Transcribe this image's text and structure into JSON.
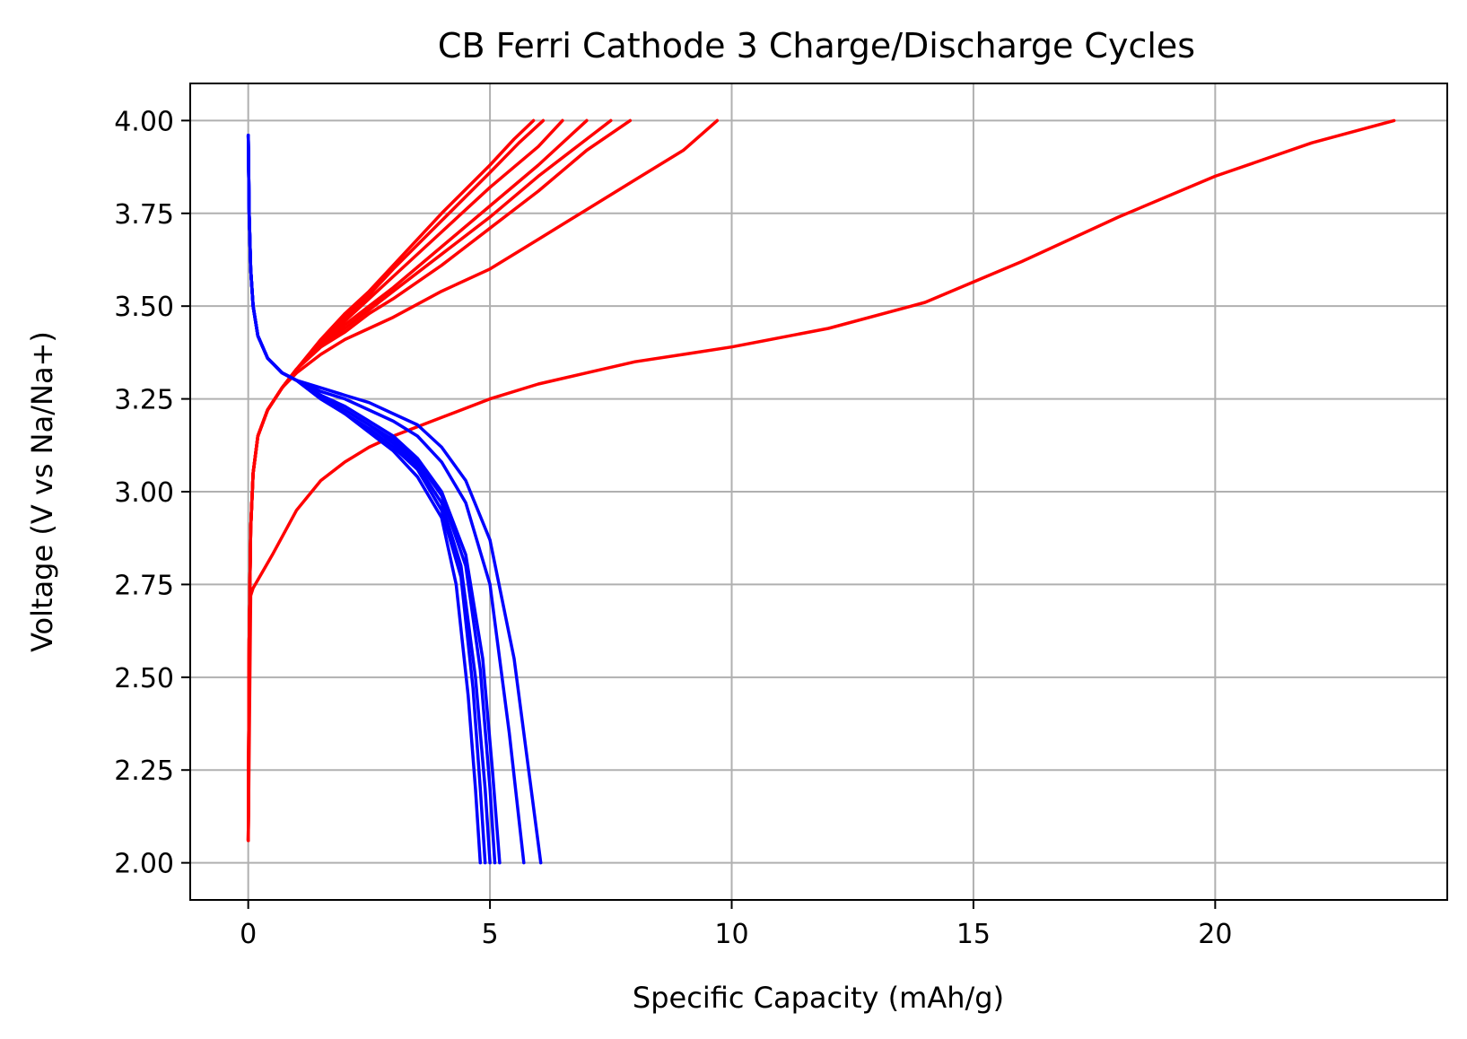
{
  "chart_data": {
    "type": "line",
    "title": "CB Ferri Cathode 3 Charge/Discharge Cycles",
    "xlabel": "Specific Capacity (mAh/g)",
    "ylabel": "Voltage (V vs Na/Na+)",
    "xlim": [
      -1.2,
      24.8
    ],
    "ylim": [
      1.9,
      4.1
    ],
    "x_ticks": [
      0,
      5,
      10,
      15,
      20
    ],
    "x_tick_labels": [
      "0",
      "5",
      "10",
      "15",
      "20"
    ],
    "y_ticks": [
      2.0,
      2.25,
      2.5,
      2.75,
      3.0,
      3.25,
      3.5,
      3.75,
      4.0
    ],
    "y_tick_labels": [
      "2.00",
      "2.25",
      "2.50",
      "2.75",
      "3.00",
      "3.25",
      "3.50",
      "3.75",
      "4.00"
    ],
    "grid": true,
    "colors": {
      "charge": "#ff0000",
      "discharge": "#0000ff"
    },
    "series": [
      {
        "kind": "charge",
        "color": "#ff0000",
        "x": [
          0,
          0.05,
          0.1,
          0.5,
          1,
          1.5,
          2,
          2.5,
          3,
          4,
          5,
          6,
          7,
          8,
          9,
          10,
          12,
          14,
          16,
          18,
          20,
          22,
          23.7
        ],
        "y": [
          2.06,
          2.72,
          2.74,
          2.83,
          2.95,
          3.03,
          3.08,
          3.12,
          3.15,
          3.2,
          3.25,
          3.29,
          3.32,
          3.35,
          3.37,
          3.39,
          3.44,
          3.51,
          3.62,
          3.74,
          3.85,
          3.94,
          4.0
        ]
      },
      {
        "kind": "charge",
        "color": "#ff0000",
        "x": [
          0,
          0.02,
          0.05,
          0.1,
          0.2,
          0.4,
          0.7,
          1,
          1.5,
          2,
          3,
          4,
          5,
          6,
          7,
          8,
          9,
          9.7
        ],
        "y": [
          2.06,
          2.6,
          2.9,
          3.05,
          3.15,
          3.22,
          3.28,
          3.32,
          3.37,
          3.41,
          3.47,
          3.54,
          3.6,
          3.68,
          3.76,
          3.84,
          3.92,
          4.0
        ]
      },
      {
        "kind": "charge",
        "color": "#ff0000",
        "x": [
          0,
          0.02,
          0.05,
          0.1,
          0.2,
          0.4,
          0.7,
          1,
          1.5,
          2,
          2.5,
          3,
          4,
          5,
          6,
          7,
          7.9
        ],
        "y": [
          2.06,
          2.6,
          2.9,
          3.05,
          3.15,
          3.22,
          3.28,
          3.33,
          3.39,
          3.43,
          3.48,
          3.52,
          3.61,
          3.71,
          3.81,
          3.92,
          4.0
        ]
      },
      {
        "kind": "charge",
        "color": "#ff0000",
        "x": [
          0,
          0.02,
          0.05,
          0.1,
          0.2,
          0.4,
          0.7,
          1,
          1.5,
          2,
          2.5,
          3,
          4,
          5,
          6,
          7,
          7.5
        ],
        "y": [
          2.06,
          2.6,
          2.9,
          3.05,
          3.15,
          3.22,
          3.28,
          3.33,
          3.39,
          3.44,
          3.49,
          3.54,
          3.64,
          3.74,
          3.85,
          3.95,
          4.0
        ]
      },
      {
        "kind": "charge",
        "color": "#ff0000",
        "x": [
          0,
          0.02,
          0.05,
          0.1,
          0.2,
          0.4,
          0.7,
          1,
          1.5,
          2,
          2.5,
          3,
          4,
          5,
          6,
          7.0
        ],
        "y": [
          2.06,
          2.6,
          2.9,
          3.05,
          3.15,
          3.22,
          3.28,
          3.33,
          3.39,
          3.45,
          3.5,
          3.55,
          3.66,
          3.77,
          3.88,
          4.0
        ]
      },
      {
        "kind": "charge",
        "color": "#ff0000",
        "x": [
          0,
          0.02,
          0.05,
          0.1,
          0.2,
          0.4,
          0.7,
          1,
          1.5,
          2,
          2.5,
          3,
          4,
          5,
          6,
          6.5
        ],
        "y": [
          2.06,
          2.6,
          2.9,
          3.05,
          3.15,
          3.22,
          3.28,
          3.33,
          3.4,
          3.46,
          3.52,
          3.58,
          3.7,
          3.82,
          3.93,
          4.0
        ]
      },
      {
        "kind": "charge",
        "color": "#ff0000",
        "x": [
          0,
          0.02,
          0.05,
          0.1,
          0.2,
          0.4,
          0.7,
          1,
          1.5,
          2,
          2.5,
          3,
          4,
          5,
          5.6,
          6.1
        ],
        "y": [
          2.06,
          2.6,
          2.9,
          3.05,
          3.15,
          3.22,
          3.28,
          3.33,
          3.4,
          3.47,
          3.53,
          3.6,
          3.73,
          3.86,
          3.94,
          4.0
        ]
      },
      {
        "kind": "charge",
        "color": "#ff0000",
        "x": [
          0,
          0.02,
          0.05,
          0.1,
          0.2,
          0.4,
          0.7,
          1,
          1.5,
          2,
          2.5,
          3,
          4,
          5,
          5.5,
          5.9
        ],
        "y": [
          2.06,
          2.6,
          2.9,
          3.05,
          3.15,
          3.22,
          3.28,
          3.33,
          3.41,
          3.48,
          3.54,
          3.61,
          3.75,
          3.88,
          3.95,
          4.0
        ]
      },
      {
        "kind": "discharge",
        "color": "#0000ff",
        "x": [
          0,
          0.02,
          0.05,
          0.1,
          0.2,
          0.4,
          0.7,
          1,
          1.5,
          2,
          2.5,
          3,
          3.5,
          4,
          4.5,
          5,
          5.5,
          5.8,
          6.05
        ],
        "y": [
          3.96,
          3.75,
          3.6,
          3.5,
          3.42,
          3.36,
          3.32,
          3.3,
          3.28,
          3.26,
          3.24,
          3.21,
          3.18,
          3.12,
          3.03,
          2.87,
          2.55,
          2.25,
          2.0
        ]
      },
      {
        "kind": "discharge",
        "color": "#0000ff",
        "x": [
          0,
          0.02,
          0.05,
          0.1,
          0.2,
          0.4,
          0.7,
          1,
          1.5,
          2,
          2.5,
          3,
          3.5,
          4,
          4.5,
          5,
          5.4,
          5.7
        ],
        "y": [
          3.96,
          3.75,
          3.6,
          3.5,
          3.42,
          3.36,
          3.32,
          3.3,
          3.27,
          3.25,
          3.22,
          3.19,
          3.15,
          3.08,
          2.97,
          2.75,
          2.35,
          2.0
        ]
      },
      {
        "kind": "discharge",
        "color": "#0000ff",
        "x": [
          0,
          0.02,
          0.05,
          0.1,
          0.2,
          0.4,
          0.7,
          1,
          1.5,
          2,
          2.5,
          3,
          3.5,
          4,
          4.5,
          4.85,
          5.05,
          5.2
        ],
        "y": [
          3.96,
          3.75,
          3.6,
          3.5,
          3.42,
          3.36,
          3.32,
          3.3,
          3.26,
          3.23,
          3.19,
          3.15,
          3.09,
          3.0,
          2.83,
          2.55,
          2.25,
          2.0
        ]
      },
      {
        "kind": "discharge",
        "color": "#0000ff",
        "x": [
          0,
          0.02,
          0.05,
          0.1,
          0.2,
          0.4,
          0.7,
          1,
          1.5,
          2,
          2.5,
          3,
          3.5,
          4,
          4.5,
          4.8,
          5.0,
          5.1
        ],
        "y": [
          3.96,
          3.75,
          3.6,
          3.5,
          3.42,
          3.36,
          3.32,
          3.3,
          3.26,
          3.22,
          3.18,
          3.14,
          3.08,
          2.99,
          2.8,
          2.52,
          2.2,
          2.0
        ]
      },
      {
        "kind": "discharge",
        "color": "#0000ff",
        "x": [
          0,
          0.02,
          0.05,
          0.1,
          0.2,
          0.4,
          0.7,
          1,
          1.5,
          2,
          2.5,
          3,
          3.5,
          4,
          4.4,
          4.7,
          4.9,
          5.0
        ],
        "y": [
          3.96,
          3.75,
          3.6,
          3.5,
          3.42,
          3.36,
          3.32,
          3.3,
          3.25,
          3.22,
          3.18,
          3.13,
          3.07,
          2.97,
          2.8,
          2.5,
          2.2,
          2.0
        ]
      },
      {
        "kind": "discharge",
        "color": "#0000ff",
        "x": [
          0,
          0.02,
          0.05,
          0.1,
          0.2,
          0.4,
          0.7,
          1,
          1.5,
          2,
          2.5,
          3,
          3.5,
          4,
          4.4,
          4.65,
          4.8,
          4.9
        ],
        "y": [
          3.96,
          3.75,
          3.6,
          3.5,
          3.42,
          3.36,
          3.32,
          3.3,
          3.25,
          3.21,
          3.17,
          3.12,
          3.06,
          2.95,
          2.77,
          2.47,
          2.2,
          2.0
        ]
      },
      {
        "kind": "discharge",
        "color": "#0000ff",
        "x": [
          0,
          0.02,
          0.05,
          0.1,
          0.2,
          0.4,
          0.7,
          1,
          1.5,
          2,
          2.5,
          3,
          3.5,
          4,
          4.3,
          4.55,
          4.7,
          4.8
        ],
        "y": [
          3.96,
          3.75,
          3.6,
          3.5,
          3.42,
          3.36,
          3.32,
          3.3,
          3.25,
          3.21,
          3.16,
          3.11,
          3.04,
          2.93,
          2.75,
          2.45,
          2.2,
          2.0
        ]
      }
    ]
  }
}
